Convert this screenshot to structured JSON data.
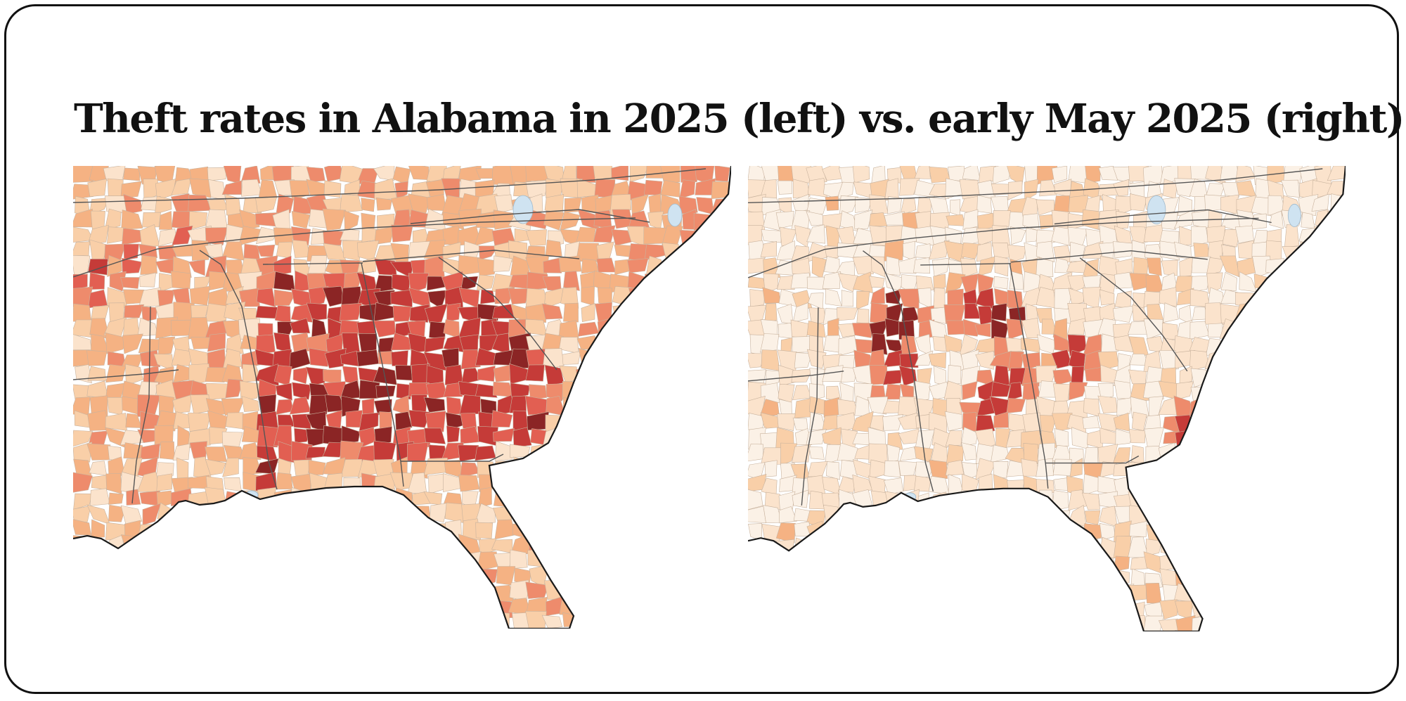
{
  "title": "Theft rates in Alabama in 2025 (left) vs. early May 2025 (right)",
  "colors": {
    "scale": [
      "#fbf1e6",
      "#fbe3cc",
      "#f9cfa8",
      "#f5b283",
      "#ee8b6c",
      "#e25f52",
      "#c53b38",
      "#8b2525"
    ],
    "state_border": "#555555",
    "county_border": "#c9b39e",
    "water": "#cfe3f1",
    "background": "#ffffff"
  }
}
